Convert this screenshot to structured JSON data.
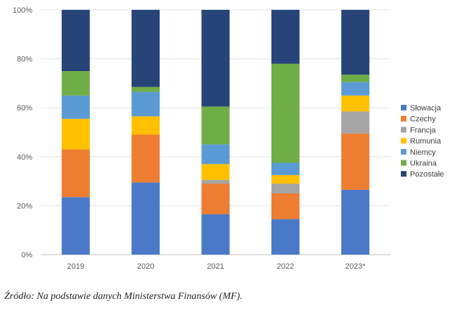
{
  "chart_data": {
    "type": "bar",
    "stacked": true,
    "normalized": true,
    "categories": [
      "2019",
      "2020",
      "2021",
      "2022",
      "2023*"
    ],
    "ylim": [
      0,
      100
    ],
    "yticks": [
      0,
      20,
      40,
      60,
      80,
      100
    ],
    "ytick_suffix": "%",
    "grid": true,
    "legend_position": "right",
    "series": [
      {
        "name": "Słowacja",
        "color": "#4a7ac7",
        "values": [
          23.5,
          29.5,
          16.5,
          14.5,
          26.5
        ]
      },
      {
        "name": "Czechy",
        "color": "#ed7d31",
        "values": [
          19.5,
          19.5,
          12.5,
          10.5,
          23.0
        ]
      },
      {
        "name": "Francja",
        "color": "#a5a5a5",
        "values": [
          0.0,
          0.0,
          1.5,
          4.0,
          9.0
        ]
      },
      {
        "name": "Rumunia",
        "color": "#ffc000",
        "values": [
          12.5,
          7.5,
          6.5,
          3.5,
          6.5
        ]
      },
      {
        "name": "Niemcy",
        "color": "#5b9bd5",
        "values": [
          9.5,
          10.0,
          8.0,
          5.0,
          5.5
        ]
      },
      {
        "name": "Ukraina",
        "color": "#70ad47",
        "values": [
          10.0,
          2.0,
          15.5,
          40.5,
          3.0
        ]
      },
      {
        "name": "Pozostałe",
        "color": "#264478",
        "values": [
          25.0,
          31.5,
          39.5,
          22.0,
          26.5
        ]
      }
    ]
  },
  "source": "Źródło: Na podstawie danych Ministerstwa Finansów (MF)."
}
